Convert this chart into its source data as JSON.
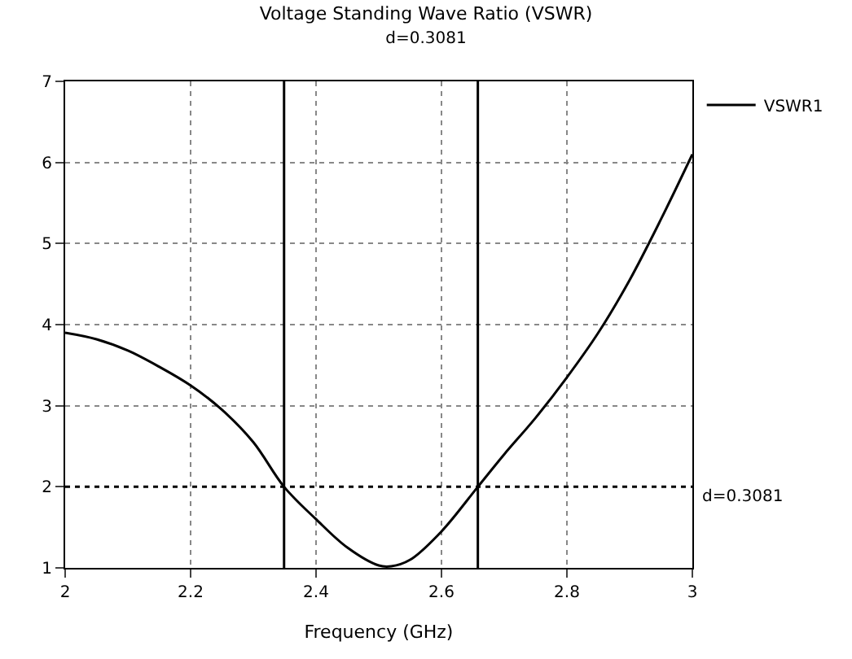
{
  "chart_data": {
    "type": "line",
    "title": "Voltage Standing Wave Ratio (VSWR)",
    "subtitle": "d=0.3081",
    "xlabel": "Frequency (GHz)",
    "x": [
      2.0,
      2.05,
      2.1,
      2.15,
      2.2,
      2.25,
      2.3,
      2.349,
      2.4,
      2.45,
      2.5,
      2.52,
      2.55,
      2.6,
      2.658,
      2.7,
      2.75,
      2.8,
      2.85,
      2.9,
      2.95,
      3.0
    ],
    "series": [
      {
        "name": "VSWR1",
        "color": "#000000",
        "values": [
          3.9,
          3.82,
          3.68,
          3.48,
          3.25,
          2.95,
          2.55,
          2.0,
          1.6,
          1.25,
          1.03,
          1.02,
          1.1,
          1.45,
          2.0,
          2.4,
          2.85,
          3.35,
          3.9,
          4.55,
          5.3,
          6.1
        ]
      }
    ],
    "xlim": [
      2,
      3
    ],
    "xticks": [
      2,
      2.2,
      2.4,
      2.6,
      2.8,
      3
    ],
    "ylim": [
      1,
      7
    ],
    "yticks": [
      1,
      2,
      3,
      4,
      5,
      6,
      7
    ],
    "ref_lines": [
      {
        "axis": "x",
        "value": 2.349,
        "color": "#000000"
      },
      {
        "axis": "x",
        "value": 2.658,
        "color": "#000000"
      },
      {
        "axis": "y",
        "value": 2,
        "color": "#000000",
        "line_style": "dotted"
      }
    ],
    "annotations": [
      "d=0.3081"
    ],
    "grid": true,
    "legend": "top right",
    "marker": "none",
    "line_style": "solid"
  }
}
